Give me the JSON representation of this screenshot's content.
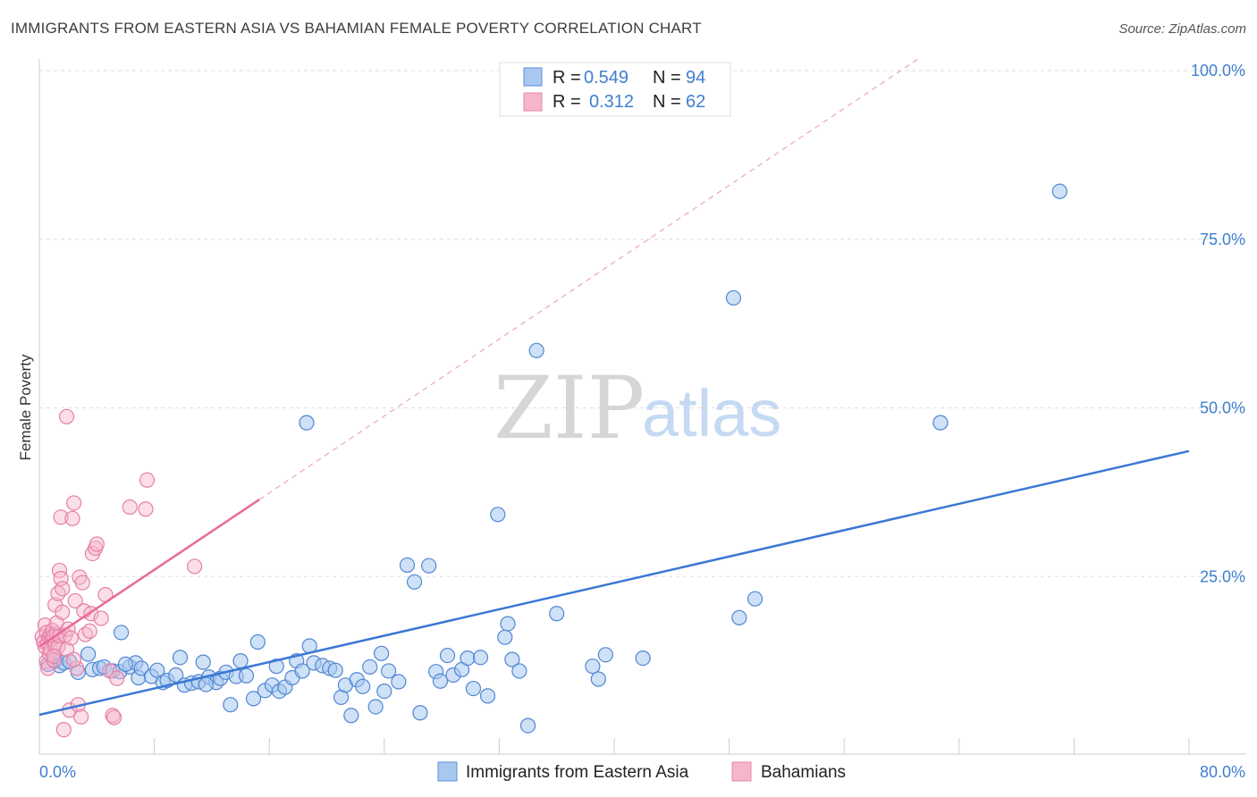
{
  "title": "IMMIGRANTS FROM EASTERN ASIA VS BAHAMIAN FEMALE POVERTY CORRELATION CHART",
  "source": "Source: ZipAtlas.com",
  "watermark": {
    "zip": "ZIP",
    "atlas": "atlas"
  },
  "colors": {
    "blue": "#3a78d4",
    "blue_fill": "#a8c8ef",
    "pink": "#e8699a",
    "pink_fill": "#f6b5cb",
    "axis_label": "#3f7fd0",
    "grid": "#dddddd"
  },
  "legend": {
    "r_label": "R =",
    "n_label": "N =",
    "series": [
      {
        "r": "0.549",
        "n": "94"
      },
      {
        "r": "0.312",
        "n": "62"
      }
    ]
  },
  "chart_data": {
    "type": "scatter",
    "title": "IMMIGRANTS FROM EASTERN ASIA VS BAHAMIAN FEMALE POVERTY CORRELATION CHART",
    "xlabel": "",
    "ylabel": "Female Poverty",
    "xlim": [
      0,
      80
    ],
    "ylim": [
      0,
      100
    ],
    "x_tick_labels": [
      "0.0%",
      "80.0%"
    ],
    "y_tick_labels": [
      "25.0%",
      "50.0%",
      "75.0%",
      "100.0%"
    ],
    "y_ticks": [
      25,
      50,
      75,
      100
    ],
    "grid": true,
    "series": [
      {
        "name": "Immigrants from Eastern Asia",
        "color": "#3a78d4",
        "trendline": {
          "x": [
            0,
            80
          ],
          "y": [
            4.5,
            43.6
          ]
        },
        "points": [
          [
            0.6,
            12.0
          ],
          [
            1.1,
            12.5
          ],
          [
            1.4,
            11.8
          ],
          [
            1.7,
            12.2
          ],
          [
            2.1,
            12.4
          ],
          [
            2.7,
            10.8
          ],
          [
            3.4,
            13.5
          ],
          [
            3.7,
            11.2
          ],
          [
            4.2,
            11.4
          ],
          [
            4.5,
            11.6
          ],
          [
            5.1,
            11.0
          ],
          [
            5.6,
            10.9
          ],
          [
            5.7,
            16.7
          ],
          [
            6.3,
            11.6
          ],
          [
            6.7,
            12.2
          ],
          [
            6.9,
            10.0
          ],
          [
            7.1,
            11.4
          ],
          [
            7.8,
            10.2
          ],
          [
            8.2,
            11.1
          ],
          [
            8.6,
            9.3
          ],
          [
            8.9,
            9.6
          ],
          [
            9.5,
            10.4
          ],
          [
            9.8,
            13.0
          ],
          [
            10.1,
            8.9
          ],
          [
            10.6,
            9.2
          ],
          [
            11.1,
            9.4
          ],
          [
            11.4,
            12.3
          ],
          [
            11.8,
            10.1
          ],
          [
            12.3,
            9.3
          ],
          [
            12.6,
            9.9
          ],
          [
            13.0,
            10.8
          ],
          [
            13.3,
            6.0
          ],
          [
            13.7,
            10.2
          ],
          [
            14.0,
            12.5
          ],
          [
            14.4,
            10.3
          ],
          [
            14.9,
            6.9
          ],
          [
            15.2,
            15.3
          ],
          [
            15.7,
            8.1
          ],
          [
            16.2,
            8.9
          ],
          [
            16.7,
            8.0
          ],
          [
            17.1,
            8.6
          ],
          [
            17.6,
            10.0
          ],
          [
            17.9,
            12.5
          ],
          [
            18.3,
            11.0
          ],
          [
            18.6,
            47.8
          ],
          [
            18.8,
            14.7
          ],
          [
            19.1,
            12.2
          ],
          [
            19.7,
            11.8
          ],
          [
            20.2,
            11.4
          ],
          [
            20.6,
            11.1
          ],
          [
            21.0,
            7.1
          ],
          [
            21.3,
            8.9
          ],
          [
            21.7,
            4.4
          ],
          [
            22.1,
            9.7
          ],
          [
            22.5,
            8.7
          ],
          [
            23.0,
            11.6
          ],
          [
            23.4,
            5.7
          ],
          [
            23.8,
            13.6
          ],
          [
            24.3,
            11.0
          ],
          [
            25.0,
            9.4
          ],
          [
            25.6,
            26.7
          ],
          [
            26.1,
            24.2
          ],
          [
            26.5,
            4.8
          ],
          [
            27.1,
            26.6
          ],
          [
            27.6,
            10.9
          ],
          [
            27.9,
            9.5
          ],
          [
            28.4,
            13.3
          ],
          [
            28.8,
            10.4
          ],
          [
            29.4,
            11.2
          ],
          [
            29.8,
            12.9
          ],
          [
            30.2,
            8.4
          ],
          [
            30.7,
            13.0
          ],
          [
            31.2,
            7.3
          ],
          [
            31.9,
            34.2
          ],
          [
            32.4,
            16.0
          ],
          [
            32.6,
            18.0
          ],
          [
            32.9,
            12.7
          ],
          [
            33.4,
            11.0
          ],
          [
            34.0,
            2.9
          ],
          [
            34.6,
            58.5
          ],
          [
            36.0,
            19.5
          ],
          [
            38.5,
            11.7
          ],
          [
            38.9,
            9.8
          ],
          [
            39.4,
            13.4
          ],
          [
            42.0,
            12.9
          ],
          [
            48.3,
            66.3
          ],
          [
            48.7,
            18.9
          ],
          [
            49.8,
            21.7
          ],
          [
            62.7,
            47.8
          ],
          [
            71.0,
            82.1
          ],
          [
            11.6,
            9.0
          ],
          [
            16.5,
            11.7
          ],
          [
            24.0,
            8.0
          ],
          [
            6.0,
            12.0
          ]
        ]
      },
      {
        "name": "Bahamians",
        "color": "#e8699a",
        "trendline": {
          "x": [
            0,
            15.3
          ],
          "y": [
            14.6,
            36.4
          ]
        },
        "points": [
          [
            0.2,
            16.1
          ],
          [
            0.3,
            15.3
          ],
          [
            0.4,
            14.6
          ],
          [
            0.4,
            17.8
          ],
          [
            0.5,
            12.4
          ],
          [
            0.5,
            16.7
          ],
          [
            0.6,
            15.2
          ],
          [
            0.6,
            11.4
          ],
          [
            0.7,
            16.0
          ],
          [
            0.7,
            13.5
          ],
          [
            0.8,
            16.4
          ],
          [
            0.8,
            14.1
          ],
          [
            0.9,
            15.7
          ],
          [
            0.9,
            17.0
          ],
          [
            1.0,
            16.2
          ],
          [
            1.0,
            12.6
          ],
          [
            1.1,
            14.8
          ],
          [
            1.1,
            20.8
          ],
          [
            1.2,
            16.5
          ],
          [
            1.2,
            18.1
          ],
          [
            1.3,
            22.5
          ],
          [
            1.3,
            14.6
          ],
          [
            1.4,
            25.9
          ],
          [
            1.4,
            16.2
          ],
          [
            1.5,
            24.7
          ],
          [
            1.5,
            33.8
          ],
          [
            1.6,
            23.2
          ],
          [
            1.6,
            19.7
          ],
          [
            1.7,
            2.3
          ],
          [
            1.8,
            16.3
          ],
          [
            1.9,
            14.2
          ],
          [
            1.9,
            48.7
          ],
          [
            2.0,
            17.2
          ],
          [
            2.1,
            5.2
          ],
          [
            2.2,
            15.9
          ],
          [
            2.3,
            33.6
          ],
          [
            2.4,
            35.9
          ],
          [
            2.5,
            21.4
          ],
          [
            2.6,
            11.4
          ],
          [
            2.7,
            6.0
          ],
          [
            2.8,
            24.9
          ],
          [
            2.9,
            4.2
          ],
          [
            3.0,
            24.1
          ],
          [
            3.1,
            19.9
          ],
          [
            3.2,
            16.4
          ],
          [
            3.5,
            16.9
          ],
          [
            3.6,
            19.5
          ],
          [
            3.7,
            28.4
          ],
          [
            3.9,
            29.2
          ],
          [
            4.0,
            29.8
          ],
          [
            4.3,
            18.8
          ],
          [
            4.6,
            22.3
          ],
          [
            4.9,
            11.0
          ],
          [
            5.1,
            4.4
          ],
          [
            5.2,
            4.1
          ],
          [
            5.4,
            9.9
          ],
          [
            6.3,
            35.3
          ],
          [
            7.4,
            35.0
          ],
          [
            7.5,
            39.3
          ],
          [
            10.8,
            26.5
          ],
          [
            1.0,
            13.2
          ],
          [
            2.4,
            12.7
          ]
        ]
      }
    ]
  }
}
